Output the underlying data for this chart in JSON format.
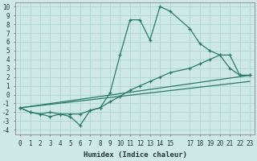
{
  "xlabel": "Humidex (Indice chaleur)",
  "xlim": [
    -0.5,
    23.5
  ],
  "ylim": [
    -4.5,
    10.5
  ],
  "xticks": [
    0,
    1,
    2,
    3,
    4,
    5,
    6,
    7,
    8,
    9,
    10,
    11,
    12,
    13,
    14,
    15,
    17,
    18,
    19,
    20,
    21,
    22,
    23
  ],
  "yticks": [
    -4,
    -3,
    -2,
    -1,
    0,
    1,
    2,
    3,
    4,
    5,
    6,
    7,
    8,
    9,
    10
  ],
  "background_color": "#cde8e5",
  "grid_color": "#b0d8d4",
  "line_color": "#2a7a6a",
  "lines": [
    {
      "x": [
        0,
        1,
        2,
        3,
        4,
        5,
        6,
        7,
        8,
        9,
        10,
        11,
        12,
        13,
        14,
        15,
        17,
        18,
        19,
        20,
        21,
        22,
        23
      ],
      "y": [
        -1.5,
        -2.0,
        -2.2,
        -2.5,
        -2.2,
        -2.5,
        -3.5,
        -1.8,
        -1.5,
        0.2,
        4.5,
        8.5,
        8.5,
        6.2,
        10.0,
        9.5,
        7.5,
        5.8,
        5.0,
        4.5,
        3.0,
        2.2,
        2.2
      ],
      "marker": true
    },
    {
      "x": [
        0,
        1,
        2,
        3,
        4,
        5,
        6,
        7,
        8,
        9,
        10,
        11,
        12,
        13,
        14,
        15,
        17,
        18,
        19,
        20,
        21,
        22,
        23
      ],
      "y": [
        -1.5,
        -2.0,
        -2.2,
        -2.0,
        -2.2,
        -2.2,
        -2.2,
        -1.8,
        -1.5,
        -0.8,
        -0.2,
        0.5,
        1.0,
        1.5,
        2.0,
        2.5,
        3.0,
        3.5,
        4.0,
        4.5,
        4.5,
        2.2,
        2.2
      ],
      "marker": true
    },
    {
      "x": [
        0,
        23
      ],
      "y": [
        -1.5,
        2.2
      ],
      "marker": false
    },
    {
      "x": [
        0,
        23
      ],
      "y": [
        -1.5,
        1.5
      ],
      "marker": false
    }
  ]
}
